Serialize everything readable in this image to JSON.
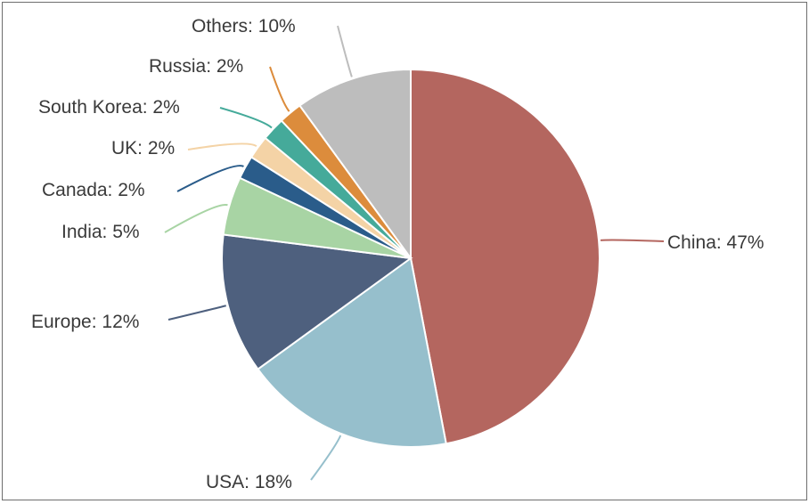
{
  "chart_data": {
    "type": "pie",
    "title": "",
    "slices": [
      {
        "label": "China",
        "value": 47,
        "display": "China: 47%",
        "color": "#b4665f"
      },
      {
        "label": "USA",
        "value": 18,
        "display": "USA: 18%",
        "color": "#96bfcc"
      },
      {
        "label": "Europe",
        "value": 12,
        "display": "Europe: 12%",
        "color": "#4e607e"
      },
      {
        "label": "India",
        "value": 5,
        "display": "India: 5%",
        "color": "#a8d4a4"
      },
      {
        "label": "Canada",
        "value": 2,
        "display": "Canada: 2%",
        "color": "#2a5c8a"
      },
      {
        "label": "UK",
        "value": 2,
        "display": "UK: 2%",
        "color": "#f4d3a6"
      },
      {
        "label": "South Korea",
        "value": 2,
        "display": "South Korea: 2%",
        "color": "#45aa9a"
      },
      {
        "label": "Russia",
        "value": 2,
        "display": "Russia: 2%",
        "color": "#dc8c3c"
      },
      {
        "label": "Others",
        "value": 10,
        "display": "Others: 10%",
        "color": "#bdbdbd"
      }
    ]
  }
}
